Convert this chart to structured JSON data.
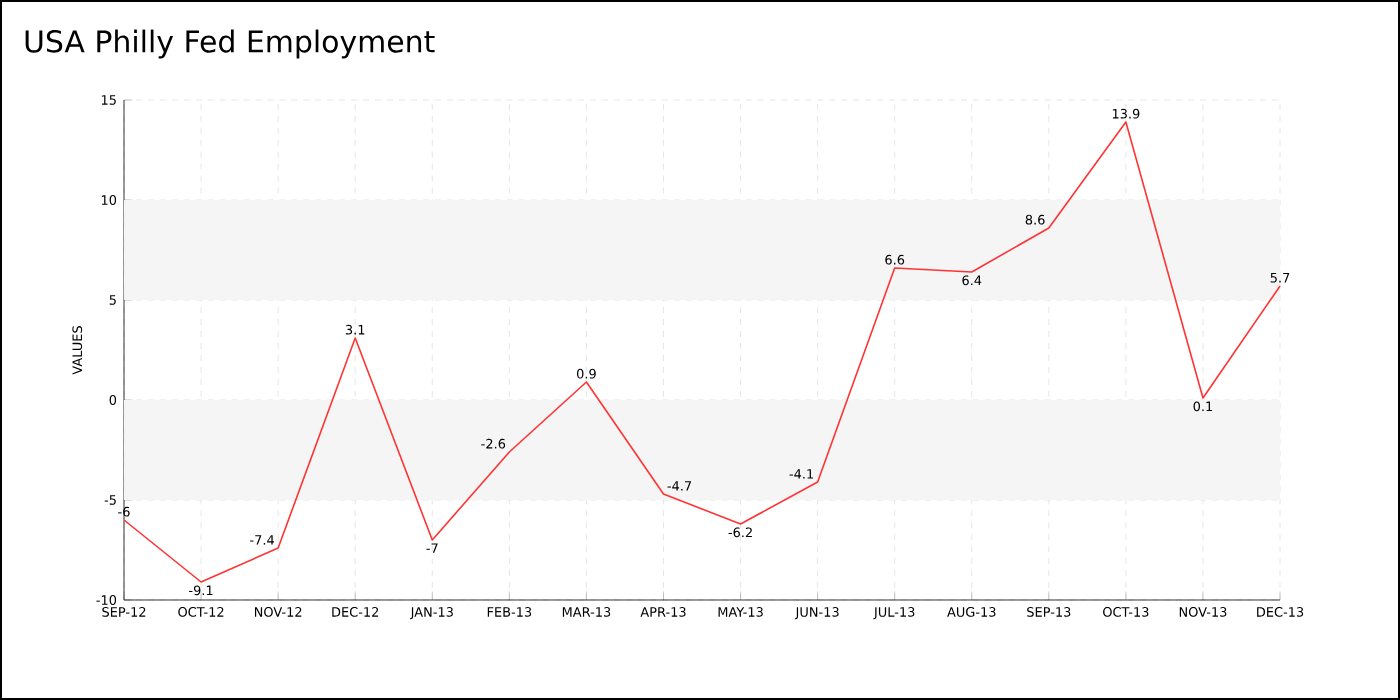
{
  "chart_data": {
    "type": "line",
    "title": "USA Philly Fed Employment",
    "ylabel": "VALUES",
    "categories": [
      "SEP-12",
      "OCT-12",
      "NOV-12",
      "DEC-12",
      "JAN-13",
      "FEB-13",
      "MAR-13",
      "APR-13",
      "MAY-13",
      "JUN-13",
      "JUL-13",
      "AUG-13",
      "SEP-13",
      "OCT-13",
      "NOV-13",
      "DEC-13"
    ],
    "series": [
      {
        "color": "#ff3333",
        "values": [
          -6,
          -9.1,
          -7.4,
          3.1,
          -7,
          -2.6,
          0.9,
          -4.7,
          -6.2,
          -4.1,
          6.6,
          6.4,
          8.6,
          13.9,
          0.1,
          5.7
        ]
      }
    ],
    "ylim": [
      -10,
      15
    ],
    "yticks": [
      -10,
      -5,
      0,
      5,
      10,
      15
    ],
    "bands": [
      {
        "axis": "y",
        "from": -5,
        "to": 0,
        "color": "#f5f5f5"
      },
      {
        "axis": "y",
        "from": 5,
        "to": 10,
        "color": "#f5f5f5"
      }
    ],
    "grid": true,
    "data_labels": true,
    "marker": "none",
    "line_style": "solid"
  }
}
